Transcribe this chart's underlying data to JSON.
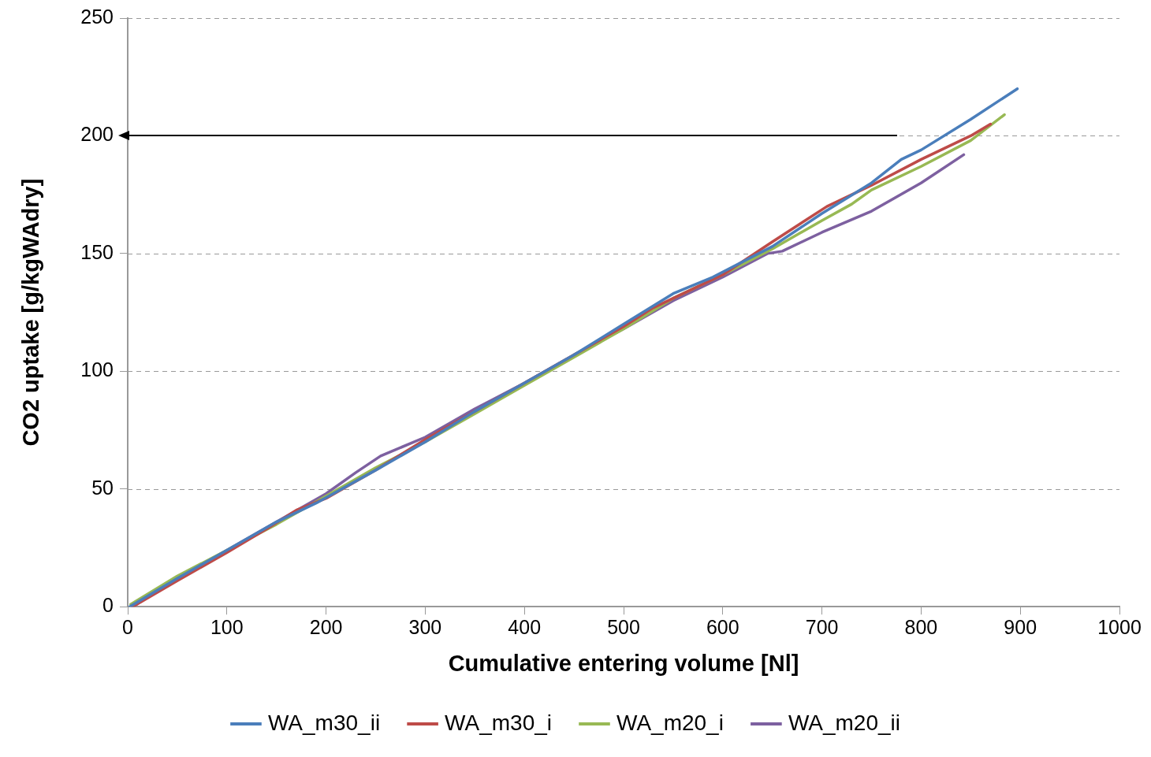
{
  "chart_data": {
    "type": "line",
    "xlabel": "Cumulative entering volume [Nl]",
    "ylabel": "CO2 uptake [g/kgWAdry]",
    "xlim": [
      0,
      1000
    ],
    "xticks": [
      0,
      100,
      200,
      300,
      400,
      500,
      600,
      700,
      800,
      900,
      1000
    ],
    "ylim": [
      0,
      250
    ],
    "yticks": [
      0,
      50,
      100,
      150,
      200,
      250
    ],
    "grid": "y",
    "legend": "bottom",
    "marker": "none",
    "line_style": "solid",
    "series": [
      {
        "name": "WA_m30_ii",
        "color": "#4a7ebb",
        "x": [
          2,
          50,
          100,
          150,
          190,
          250,
          300,
          350,
          400,
          450,
          500,
          550,
          590,
          650,
          700,
          750,
          780,
          800,
          850,
          897
        ],
        "values": [
          0,
          12,
          24,
          36,
          44,
          58,
          70,
          83,
          95,
          107,
          120,
          133,
          140,
          153,
          167,
          180,
          190,
          194,
          207,
          220
        ]
      },
      {
        "name": "WA_m30_i",
        "color": "#be4b48",
        "x": [
          5,
          50,
          100,
          140,
          170,
          200,
          250,
          300,
          350,
          400,
          450,
          500,
          530,
          550,
          600,
          650,
          705,
          750,
          800,
          850,
          870
        ],
        "values": [
          0,
          11,
          23,
          33,
          41,
          46,
          58,
          71,
          83,
          95,
          107,
          119,
          127,
          131,
          141,
          155,
          170,
          179,
          190,
          200,
          205
        ]
      },
      {
        "name": "WA_m20_i",
        "color": "#98b954",
        "x": [
          3,
          50,
          100,
          150,
          200,
          250,
          300,
          350,
          400,
          450,
          500,
          550,
          600,
          650,
          700,
          730,
          750,
          800,
          850,
          884
        ],
        "values": [
          1,
          13,
          24,
          35,
          47,
          59,
          70,
          82,
          94,
          106,
          118,
          131,
          141,
          152,
          164,
          171,
          177,
          187,
          198,
          209
        ]
      },
      {
        "name": "WA_m20_ii",
        "color": "#7d60a0",
        "x": [
          5,
          50,
          100,
          150,
          200,
          230,
          255,
          300,
          350,
          400,
          450,
          500,
          550,
          600,
          645,
          660,
          700,
          750,
          800,
          843
        ],
        "values": [
          0,
          12,
          24,
          36,
          48,
          57,
          64,
          72,
          84,
          95,
          107,
          118,
          130,
          140,
          150,
          151,
          159,
          168,
          180,
          192
        ]
      }
    ]
  }
}
